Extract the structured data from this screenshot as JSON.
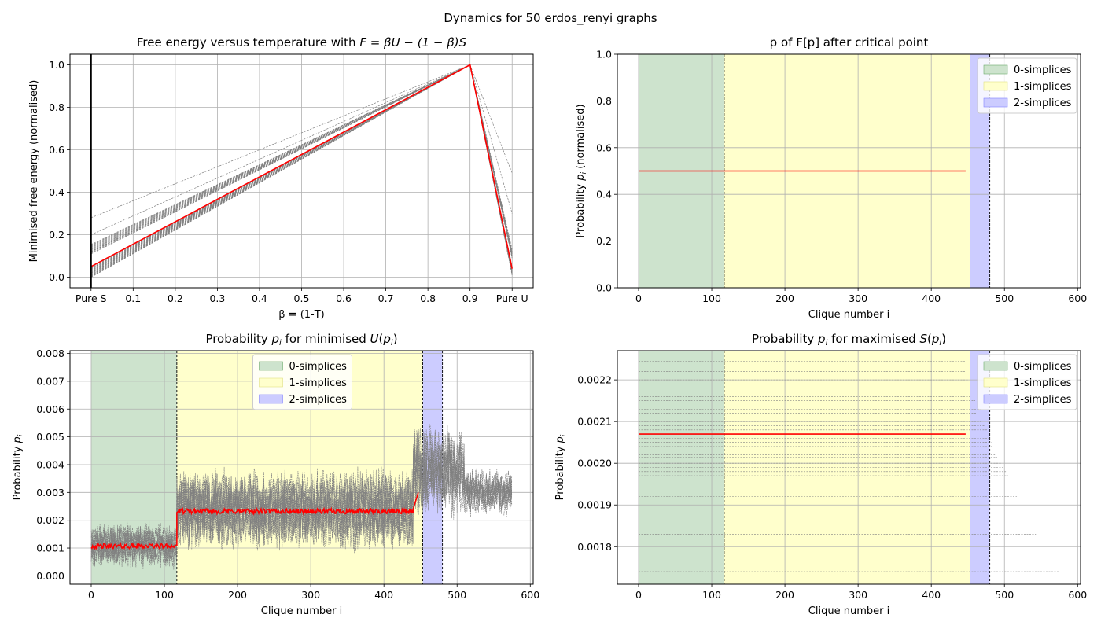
{
  "suptitle": "Dynamics for 50 erdos_renyi graphs",
  "colors": {
    "mean_line": "#ff0000",
    "sample_line": "#808080",
    "grid": "#b0b0b0",
    "s0_fill": "#cde3cd",
    "s1_fill": "#ffffcc",
    "s2_fill": "#ccccff",
    "s0_edge": "#6aa86a",
    "s1_edge": "#e0e080",
    "s2_edge": "#8080ff"
  },
  "chart_data": [
    {
      "id": "free_energy",
      "type": "line",
      "title_prefix": "Free energy versus temperature with ",
      "title_math": "F = βU − (1 − β)S",
      "xlabel": "β = (1-T)",
      "ylabel": "Minimised free energy (normalised)",
      "xlim": [
        -0.05,
        1.05
      ],
      "ylim": [
        -0.05,
        1.05
      ],
      "xticks": [
        0,
        0.1,
        0.2,
        0.3,
        0.4,
        0.5,
        0.6,
        0.7,
        0.8,
        0.9,
        1.0
      ],
      "xtick_labels": [
        "Pure S",
        "0.1",
        "0.2",
        "0.3",
        "0.4",
        "0.5",
        "0.6",
        "0.7",
        "0.8",
        "0.9",
        "Pure U"
      ],
      "yticks": [
        0.0,
        0.2,
        0.4,
        0.6,
        0.8,
        1.0
      ],
      "ytick_labels": [
        "0.0",
        "0.2",
        "0.4",
        "0.6",
        "0.8",
        "1.0"
      ],
      "vline_x": 0,
      "mean_series": {
        "x": [
          0,
          0.9,
          1.0
        ],
        "y": [
          0.05,
          1.0,
          0.04
        ]
      },
      "sample_series": [
        {
          "x": [
            0,
            0.9,
            1.0
          ],
          "y": [
            0.0,
            1.0,
            0.01
          ]
        },
        {
          "x": [
            0,
            0.9,
            1.0
          ],
          "y": [
            0.01,
            1.0,
            0.02
          ]
        },
        {
          "x": [
            0,
            0.9,
            1.0
          ],
          "y": [
            0.02,
            1.0,
            0.03
          ]
        },
        {
          "x": [
            0,
            0.9,
            1.0
          ],
          "y": [
            0.03,
            1.0,
            0.04
          ]
        },
        {
          "x": [
            0,
            0.9,
            1.0
          ],
          "y": [
            0.04,
            1.0,
            0.05
          ]
        },
        {
          "x": [
            0,
            0.9,
            1.0
          ],
          "y": [
            0.11,
            1.0,
            0.09
          ]
        },
        {
          "x": [
            0,
            0.9,
            1.0
          ],
          "y": [
            0.12,
            1.0,
            0.1
          ]
        },
        {
          "x": [
            0,
            0.9,
            1.0
          ],
          "y": [
            0.13,
            1.0,
            0.11
          ]
        },
        {
          "x": [
            0,
            0.9,
            1.0
          ],
          "y": [
            0.15,
            1.0,
            0.13
          ]
        },
        {
          "x": [
            0,
            0.9,
            1.0
          ],
          "y": [
            0.2,
            1.0,
            0.3
          ]
        },
        {
          "x": [
            0,
            0.9,
            1.0
          ],
          "y": [
            0.28,
            1.0,
            0.49
          ]
        }
      ]
    },
    {
      "id": "p_after_critical",
      "type": "line",
      "title": "p of F[p] after critical point",
      "xlabel": "Clique number i",
      "ylabel_prefix": "Probability ",
      "ylabel_math": "p",
      "ylabel_sub": "i",
      "ylabel_suffix": " (normalised)",
      "xlim": [
        -29,
        604
      ],
      "ylim": [
        0,
        1.0
      ],
      "xticks": [
        0,
        100,
        200,
        300,
        400,
        500,
        600
      ],
      "xtick_labels": [
        "0",
        "100",
        "200",
        "300",
        "400",
        "500",
        "600"
      ],
      "yticks": [
        0.0,
        0.2,
        0.4,
        0.6,
        0.8,
        1.0
      ],
      "ytick_labels": [
        "0.0",
        "0.2",
        "0.4",
        "0.6",
        "0.8",
        "1.0"
      ],
      "spans": [
        [
          0,
          117
        ],
        [
          117,
          453
        ],
        [
          453,
          480
        ]
      ],
      "legend": [
        "0-simplices",
        "1-simplices",
        "2-simplices"
      ],
      "legend_position": "upper right",
      "mean_series": {
        "x": [
          0,
          447
        ],
        "y": [
          0.5,
          0.5
        ]
      },
      "sample_series": [
        {
          "x": [
            0,
            575
          ],
          "y": [
            0.5,
            0.5
          ]
        }
      ]
    },
    {
      "id": "p_min_U",
      "type": "line",
      "title_prefix": "Probability ",
      "title_math": "p",
      "title_sub": "i",
      "title_suffix": " for minimised ",
      "title_fn": "U",
      "title_arg": "p",
      "title_arg_sub": "i",
      "xlabel": "Clique number i",
      "ylabel_prefix": "Probability ",
      "ylabel_math": "p",
      "ylabel_sub": "i",
      "xlim": [
        -29,
        604
      ],
      "ylim": [
        -0.0003,
        0.0081
      ],
      "xticks": [
        0,
        100,
        200,
        300,
        400,
        500,
        600
      ],
      "xtick_labels": [
        "0",
        "100",
        "200",
        "300",
        "400",
        "500",
        "600"
      ],
      "yticks": [
        0.0,
        0.001,
        0.002,
        0.003,
        0.004,
        0.005,
        0.006,
        0.007,
        0.008
      ],
      "ytick_labels": [
        "0.000",
        "0.001",
        "0.002",
        "0.003",
        "0.004",
        "0.005",
        "0.006",
        "0.007",
        "0.008"
      ],
      "spans": [
        [
          0,
          117
        ],
        [
          117,
          453
        ],
        [
          453,
          480
        ]
      ],
      "legend": [
        "0-simplices",
        "1-simplices",
        "2-simplices"
      ],
      "legend_position": "upper center",
      "mean_levels": [
        {
          "x": [
            0,
            117
          ],
          "y": 0.00107
        },
        {
          "x": [
            117,
            440
          ],
          "y": 0.00232
        },
        {
          "x": [
            440,
            447
          ],
          "y": 0.0028
        }
      ],
      "sample_bands": [
        {
          "x": [
            0,
            117
          ],
          "center": 0.0011,
          "spread": 0.0009
        },
        {
          "x": [
            117,
            440
          ],
          "center": 0.0024,
          "spread": 0.0016
        },
        {
          "x": [
            440,
            510
          ],
          "center": 0.0038,
          "spread": 0.0018
        },
        {
          "x": [
            510,
            575
          ],
          "center": 0.003,
          "spread": 0.0009
        }
      ]
    },
    {
      "id": "p_max_S",
      "type": "line",
      "title_prefix": "Probability ",
      "title_math": "p",
      "title_sub": "i",
      "title_suffix": " for maximised ",
      "title_fn": "S",
      "title_arg": "p",
      "title_arg_sub": "i",
      "xlabel": "Clique number i",
      "ylabel_prefix": "Probability ",
      "ylabel_math": "p",
      "ylabel_sub": "i",
      "xlim": [
        -29,
        604
      ],
      "ylim": [
        0.00171,
        0.00227
      ],
      "xticks": [
        0,
        100,
        200,
        300,
        400,
        500,
        600
      ],
      "xtick_labels": [
        "0",
        "100",
        "200",
        "300",
        "400",
        "500",
        "600"
      ],
      "yticks": [
        0.0018,
        0.0019,
        0.002,
        0.0021,
        0.0022
      ],
      "ytick_labels": [
        "0.0018",
        "0.0019",
        "0.0020",
        "0.0021",
        "0.0022"
      ],
      "spans": [
        [
          0,
          117
        ],
        [
          117,
          453
        ],
        [
          453,
          480
        ]
      ],
      "legend": [
        "0-simplices",
        "1-simplices",
        "2-simplices"
      ],
      "legend_position": "upper right",
      "mean_series": {
        "x": [
          0,
          447
        ],
        "y": [
          0.00207,
          0.00207
        ]
      },
      "sample_levels": [
        {
          "y": 0.002245,
          "end": 447
        },
        {
          "y": 0.00222,
          "end": 447
        },
        {
          "y": 0.0022,
          "end": 450
        },
        {
          "y": 0.00219,
          "end": 452
        },
        {
          "y": 0.00218,
          "end": 455
        },
        {
          "y": 0.00216,
          "end": 453
        },
        {
          "y": 0.00215,
          "end": 460
        },
        {
          "y": 0.00213,
          "end": 470
        },
        {
          "y": 0.00212,
          "end": 462
        },
        {
          "y": 0.0021,
          "end": 470
        },
        {
          "y": 0.00209,
          "end": 473
        },
        {
          "y": 0.00208,
          "end": 477
        },
        {
          "y": 0.00206,
          "end": 480
        },
        {
          "y": 0.00205,
          "end": 482
        },
        {
          "y": 0.00204,
          "end": 483
        },
        {
          "y": 0.00202,
          "end": 487
        },
        {
          "y": 0.002015,
          "end": 490
        },
        {
          "y": 0.002,
          "end": 495
        },
        {
          "y": 0.00199,
          "end": 500
        },
        {
          "y": 0.00198,
          "end": 502
        },
        {
          "y": 0.00197,
          "end": 505
        },
        {
          "y": 0.00196,
          "end": 508
        },
        {
          "y": 0.00195,
          "end": 510
        },
        {
          "y": 0.00192,
          "end": 517
        },
        {
          "y": 0.00183,
          "end": 543
        },
        {
          "y": 0.00174,
          "end": 575
        }
      ]
    }
  ]
}
